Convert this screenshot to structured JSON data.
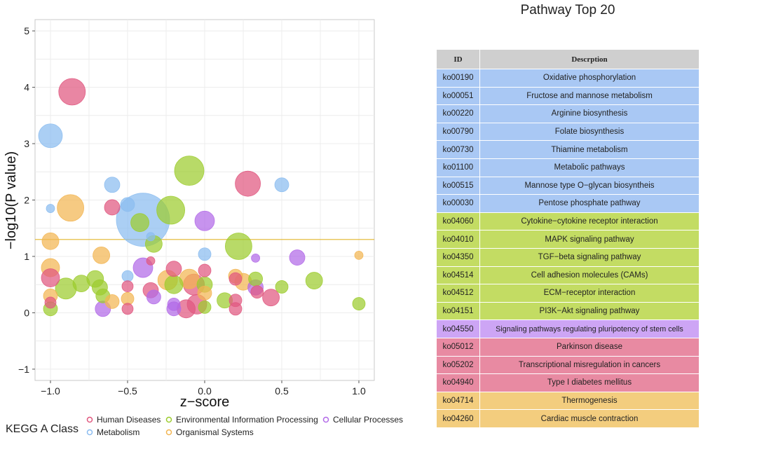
{
  "chart_data": {
    "type": "scatter",
    "title": "",
    "xlabel": "z−score",
    "ylabel": "−log10(P value)",
    "xlim": [
      -1.1,
      1.1
    ],
    "ylim": [
      -1.2,
      5.2
    ],
    "xticks": [
      -1.0,
      -0.5,
      0.0,
      0.5,
      1.0
    ],
    "xtick_labels": [
      "−1.0",
      "−0.5",
      "0.0",
      "0.5",
      "1.0"
    ],
    "yticks": [
      -1,
      0,
      1,
      2,
      3,
      4,
      5
    ],
    "ytick_labels": [
      "−1",
      "0",
      "1",
      "2",
      "3",
      "4",
      "5"
    ],
    "threshold_y": 1.3,
    "threshold_color": "#e3b52a",
    "legend_title": "KEGG A Class",
    "legend": [
      {
        "name": "Human Diseases",
        "color": "#e0587f"
      },
      {
        "name": "Environmental Information Processing",
        "color": "#9ccc2e"
      },
      {
        "name": "Cellular Processes",
        "color": "#b26ae8"
      },
      {
        "name": "Metabolism",
        "color": "#8bbcf0"
      },
      {
        "name": "Organismal Systems",
        "color": "#f2b552"
      }
    ],
    "points": [
      {
        "x": -0.86,
        "y": 3.92,
        "s": 19,
        "c": "Human Diseases"
      },
      {
        "x": -1.0,
        "y": 3.14,
        "s": 17,
        "c": "Metabolism"
      },
      {
        "x": -0.1,
        "y": 2.52,
        "s": 21,
        "c": "Environmental Information Processing"
      },
      {
        "x": 0.28,
        "y": 2.29,
        "s": 18,
        "c": "Human Diseases"
      },
      {
        "x": -0.6,
        "y": 2.27,
        "s": 11,
        "c": "Metabolism"
      },
      {
        "x": 0.5,
        "y": 2.27,
        "s": 10,
        "c": "Metabolism"
      },
      {
        "x": -1.0,
        "y": 1.85,
        "s": 6,
        "c": "Metabolism"
      },
      {
        "x": -0.87,
        "y": 1.86,
        "s": 19,
        "c": "Organismal Systems"
      },
      {
        "x": -0.6,
        "y": 1.87,
        "s": 11,
        "c": "Human Diseases"
      },
      {
        "x": -0.5,
        "y": 1.92,
        "s": 10,
        "c": "Metabolism"
      },
      {
        "x": -0.22,
        "y": 1.82,
        "s": 20,
        "c": "Environmental Information Processing"
      },
      {
        "x": 0.0,
        "y": 1.63,
        "s": 14,
        "c": "Cellular Processes"
      },
      {
        "x": -0.4,
        "y": 1.65,
        "s": 38,
        "c": "Metabolism"
      },
      {
        "x": -0.42,
        "y": 1.6,
        "s": 13,
        "c": "Environmental Information Processing"
      },
      {
        "x": -1.0,
        "y": 1.27,
        "s": 12,
        "c": "Organismal Systems"
      },
      {
        "x": 0.22,
        "y": 1.18,
        "s": 19,
        "c": "Environmental Information Processing"
      },
      {
        "x": -0.33,
        "y": 1.22,
        "s": 12,
        "c": "Environmental Information Processing"
      },
      {
        "x": -0.35,
        "y": 1.35,
        "s": 6,
        "c": "Metabolism"
      },
      {
        "x": -0.67,
        "y": 1.02,
        "s": 12,
        "c": "Organismal Systems"
      },
      {
        "x": 0.0,
        "y": 1.04,
        "s": 9,
        "c": "Metabolism"
      },
      {
        "x": 0.33,
        "y": 0.97,
        "s": 6,
        "c": "Cellular Processes"
      },
      {
        "x": 0.6,
        "y": 0.98,
        "s": 11,
        "c": "Cellular Processes"
      },
      {
        "x": 1.0,
        "y": 1.02,
        "s": 6,
        "c": "Organismal Systems"
      },
      {
        "x": -0.35,
        "y": 0.92,
        "s": 6,
        "c": "Human Diseases"
      },
      {
        "x": -1.0,
        "y": 0.8,
        "s": 13,
        "c": "Organismal Systems"
      },
      {
        "x": -0.4,
        "y": 0.8,
        "s": 14,
        "c": "Cellular Processes"
      },
      {
        "x": -0.2,
        "y": 0.78,
        "s": 11,
        "c": "Human Diseases"
      },
      {
        "x": 0.0,
        "y": 0.75,
        "s": 9,
        "c": "Human Diseases"
      },
      {
        "x": -1.0,
        "y": 0.62,
        "s": 13,
        "c": "Human Diseases"
      },
      {
        "x": -0.9,
        "y": 0.43,
        "s": 15,
        "c": "Environmental Information Processing"
      },
      {
        "x": -0.8,
        "y": 0.52,
        "s": 12,
        "c": "Environmental Information Processing"
      },
      {
        "x": -0.71,
        "y": 0.6,
        "s": 12,
        "c": "Environmental Information Processing"
      },
      {
        "x": -0.68,
        "y": 0.45,
        "s": 11,
        "c": "Environmental Information Processing"
      },
      {
        "x": -0.5,
        "y": 0.65,
        "s": 8,
        "c": "Metabolism"
      },
      {
        "x": -0.5,
        "y": 0.47,
        "s": 8,
        "c": "Human Diseases"
      },
      {
        "x": -0.35,
        "y": 0.4,
        "s": 11,
        "c": "Human Diseases"
      },
      {
        "x": -0.24,
        "y": 0.58,
        "s": 14,
        "c": "Organismal Systems"
      },
      {
        "x": -0.2,
        "y": 0.5,
        "s": 13,
        "c": "Environmental Information Processing"
      },
      {
        "x": -0.1,
        "y": 0.6,
        "s": 14,
        "c": "Organismal Systems"
      },
      {
        "x": -0.07,
        "y": 0.5,
        "s": 15,
        "c": "Human Diseases"
      },
      {
        "x": 0.0,
        "y": 0.5,
        "s": 11,
        "c": "Environmental Information Processing"
      },
      {
        "x": 0.0,
        "y": 0.35,
        "s": 10,
        "c": "Organismal Systems"
      },
      {
        "x": 0.2,
        "y": 0.6,
        "s": 9,
        "c": "Human Diseases"
      },
      {
        "x": 0.2,
        "y": 0.65,
        "s": 10,
        "c": "Organismal Systems"
      },
      {
        "x": 0.25,
        "y": 0.55,
        "s": 12,
        "c": "Organismal Systems"
      },
      {
        "x": 0.33,
        "y": 0.6,
        "s": 10,
        "c": "Environmental Information Processing"
      },
      {
        "x": 0.33,
        "y": 0.45,
        "s": 11,
        "c": "Cellular Processes"
      },
      {
        "x": 0.34,
        "y": 0.37,
        "s": 9,
        "c": "Human Diseases"
      },
      {
        "x": 0.43,
        "y": 0.27,
        "s": 12,
        "c": "Human Diseases"
      },
      {
        "x": 0.5,
        "y": 0.46,
        "s": 9,
        "c": "Environmental Information Processing"
      },
      {
        "x": 0.71,
        "y": 0.57,
        "s": 12,
        "c": "Environmental Information Processing"
      },
      {
        "x": 1.0,
        "y": 0.16,
        "s": 9,
        "c": "Environmental Information Processing"
      },
      {
        "x": -1.0,
        "y": 0.3,
        "s": 10,
        "c": "Organismal Systems"
      },
      {
        "x": -1.0,
        "y": 0.18,
        "s": 8,
        "c": "Human Diseases"
      },
      {
        "x": -1.0,
        "y": 0.07,
        "s": 10,
        "c": "Environmental Information Processing"
      },
      {
        "x": -0.66,
        "y": 0.3,
        "s": 10,
        "c": "Environmental Information Processing"
      },
      {
        "x": -0.6,
        "y": 0.2,
        "s": 10,
        "c": "Organismal Systems"
      },
      {
        "x": -0.5,
        "y": 0.25,
        "s": 9,
        "c": "Organismal Systems"
      },
      {
        "x": -0.66,
        "y": 0.07,
        "s": 11,
        "c": "Cellular Processes"
      },
      {
        "x": -0.5,
        "y": 0.07,
        "s": 8,
        "c": "Human Diseases"
      },
      {
        "x": -0.33,
        "y": 0.28,
        "s": 10,
        "c": "Cellular Processes"
      },
      {
        "x": -0.2,
        "y": 0.15,
        "s": 9,
        "c": "Cellular Processes"
      },
      {
        "x": -0.2,
        "y": 0.07,
        "s": 10,
        "c": "Cellular Processes"
      },
      {
        "x": -0.12,
        "y": 0.07,
        "s": 13,
        "c": "Human Diseases"
      },
      {
        "x": -0.05,
        "y": 0.15,
        "s": 14,
        "c": "Human Diseases"
      },
      {
        "x": 0.0,
        "y": 0.1,
        "s": 9,
        "c": "Environmental Information Processing"
      },
      {
        "x": 0.13,
        "y": 0.22,
        "s": 11,
        "c": "Environmental Information Processing"
      },
      {
        "x": 0.2,
        "y": 0.22,
        "s": 9,
        "c": "Human Diseases"
      },
      {
        "x": 0.2,
        "y": 0.07,
        "s": 9,
        "c": "Human Diseases"
      }
    ]
  },
  "table": {
    "title": "Pathway Top 20",
    "headers": {
      "id": "ID",
      "description": "Descrption"
    },
    "rows": [
      {
        "id": "ko00190",
        "description": "Oxidative phosphorylation",
        "color": "#a9c8f4"
      },
      {
        "id": "ko00051",
        "description": "Fructose and mannose metabolism",
        "color": "#a9c8f4"
      },
      {
        "id": "ko00220",
        "description": "Arginine biosynthesis",
        "color": "#a9c8f4"
      },
      {
        "id": "ko00790",
        "description": "Folate biosynthesis",
        "color": "#a9c8f4"
      },
      {
        "id": "ko00730",
        "description": "Thiamine metabolism",
        "color": "#a9c8f4"
      },
      {
        "id": "ko01100",
        "description": "Metabolic pathways",
        "color": "#a9c8f4"
      },
      {
        "id": "ko00515",
        "description": "Mannose type O−glycan biosyntheis",
        "color": "#a9c8f4"
      },
      {
        "id": "ko00030",
        "description": "Pentose phosphate pathway",
        "color": "#a9c8f4"
      },
      {
        "id": "ko04060",
        "description": "Cytokine−cytokine receptor interaction",
        "color": "#c3dc63"
      },
      {
        "id": "ko04010",
        "description": "MAPK signaling pathway",
        "color": "#c3dc63"
      },
      {
        "id": "ko04350",
        "description": "TGF−beta signaling pathway",
        "color": "#c3dc63"
      },
      {
        "id": "ko04514",
        "description": "Cell adhesion molecules (CAMs)",
        "color": "#c3dc63"
      },
      {
        "id": "ko04512",
        "description": "ECM−receptor interaction",
        "color": "#c3dc63"
      },
      {
        "id": "ko04151",
        "description": "PI3K−Akt signaling pathway",
        "color": "#c3dc63"
      },
      {
        "id": "ko04550",
        "description": "Signaling pathways regulating pluripotency of stem cells",
        "color": "#cda5f5"
      },
      {
        "id": "ko05012",
        "description": "Parkinson disease",
        "color": "#e88aa2"
      },
      {
        "id": "ko05202",
        "description": "Transcriptional misregulation in cancers",
        "color": "#e88aa2"
      },
      {
        "id": "ko04940",
        "description": "Type I diabetes mellitus",
        "color": "#e88aa2"
      },
      {
        "id": "ko04714",
        "description": "Thermogenesis",
        "color": "#f3cd7e"
      },
      {
        "id": "ko04260",
        "description": "Cardiac muscle contraction",
        "color": "#f3cd7e"
      }
    ]
  }
}
